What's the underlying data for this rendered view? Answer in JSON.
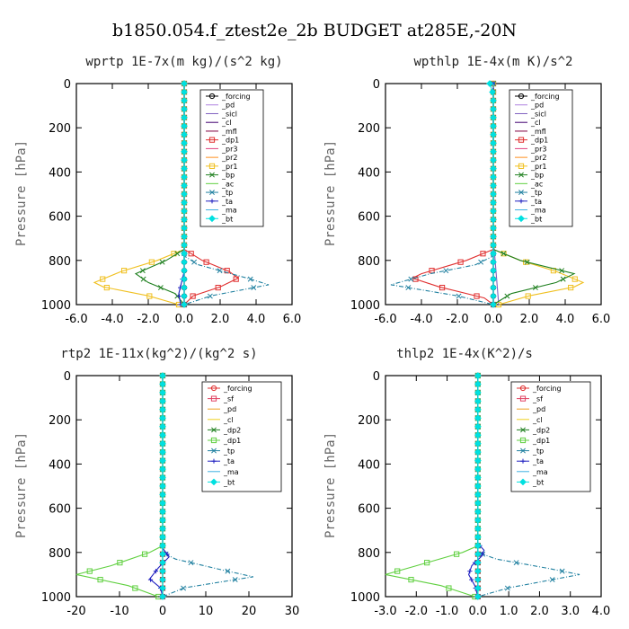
{
  "title": "b1850.054.f_ztest2e_2b  BUDGET at285E,-20N",
  "chart_data": [
    {
      "type": "line",
      "title": "wprtp  1E-7x(m kg)/(s^2 kg)",
      "ylabel": "Pressure [hPa]",
      "xlim": [
        -6,
        6
      ],
      "ylim": [
        1000,
        0
      ],
      "xticks": [
        "-6.0",
        "-4.0",
        "-2.0",
        "0.0",
        "2.0",
        "4.0",
        "6.0"
      ],
      "yticks": [
        "0",
        "200",
        "400",
        "600",
        "800",
        "1000"
      ],
      "series": [
        {
          "name": "_forcing",
          "color": "#000000",
          "marker": "circle",
          "p": [
            0,
            400,
            750,
            1000
          ],
          "v": [
            0,
            0,
            0,
            0
          ]
        },
        {
          "name": "_pd",
          "color": "#b080e0",
          "marker": "none",
          "p": [
            0,
            750,
            1000
          ],
          "v": [
            0,
            0,
            0
          ]
        },
        {
          "name": "_sicl",
          "color": "#8060c0",
          "marker": "none",
          "p": [
            0,
            1000
          ],
          "v": [
            0,
            0
          ]
        },
        {
          "name": "_cl",
          "color": "#400070",
          "marker": "none",
          "p": [
            0,
            1000
          ],
          "v": [
            0,
            0
          ]
        },
        {
          "name": "_mfl",
          "color": "#800040",
          "marker": "none",
          "p": [
            0,
            1000
          ],
          "v": [
            0,
            0
          ]
        },
        {
          "name": "_dp1",
          "color": "#e03030",
          "marker": "square",
          "p": [
            0,
            750,
            800,
            850,
            880,
            920,
            960,
            1000
          ],
          "v": [
            0,
            0,
            1.0,
            2.5,
            3.0,
            2.0,
            0.5,
            0
          ]
        },
        {
          "name": "_pr3",
          "color": "#e04080",
          "marker": "none",
          "p": [
            0,
            1000
          ],
          "v": [
            0,
            0
          ]
        },
        {
          "name": "_pr2",
          "color": "#ff9020",
          "marker": "none",
          "p": [
            0,
            1000
          ],
          "v": [
            0,
            0
          ]
        },
        {
          "name": "_pr1",
          "color": "#f0c020",
          "marker": "square",
          "p": [
            0,
            750,
            800,
            850,
            900,
            920,
            960,
            1000
          ],
          "v": [
            0,
            0,
            -1.5,
            -3.5,
            -5.0,
            -4.5,
            -2.0,
            -0.3
          ]
        },
        {
          "name": "_bp",
          "color": "#208020",
          "marker": "x",
          "p": [
            0,
            750,
            800,
            860,
            900,
            950,
            1000
          ],
          "v": [
            0,
            0,
            -1.0,
            -2.7,
            -2.0,
            -0.5,
            0
          ]
        },
        {
          "name": "_ac",
          "color": "#60d040",
          "marker": "none",
          "p": [
            0,
            1000
          ],
          "v": [
            0,
            0
          ]
        },
        {
          "name": "_tp",
          "color": "#2080a0",
          "marker": "x",
          "p": [
            0,
            780,
            820,
            880,
            910,
            960,
            1000
          ],
          "v": [
            0,
            0,
            0.8,
            3.5,
            4.7,
            1.5,
            0
          ]
        },
        {
          "name": "_ta",
          "color": "#2020c0",
          "marker": "plus",
          "p": [
            0,
            850,
            950,
            1000
          ],
          "v": [
            0,
            0,
            -0.3,
            -0.2
          ]
        },
        {
          "name": "_ma",
          "color": "#40b0e0",
          "marker": "none",
          "p": [
            0,
            1000
          ],
          "v": [
            0,
            0
          ]
        },
        {
          "name": "_bt",
          "color": "#00e0e0",
          "marker": "diamond",
          "p": [
            0,
            1000
          ],
          "v": [
            0,
            0
          ]
        }
      ]
    },
    {
      "type": "line",
      "title": "wpthlp  1E-4x(m K)/s^2",
      "ylabel": "Pressure [hPa]",
      "xlim": [
        -6,
        6
      ],
      "ylim": [
        1000,
        0
      ],
      "xticks": [
        "-6.0",
        "-4.0",
        "-2.0",
        "0.0",
        "2.0",
        "4.0",
        "6.0"
      ],
      "yticks": [
        "0",
        "200",
        "400",
        "600",
        "800",
        "1000"
      ],
      "series": [
        {
          "name": "_forcing",
          "color": "#000000",
          "marker": "circle",
          "p": [
            0,
            1000
          ],
          "v": [
            0,
            0
          ]
        },
        {
          "name": "_pd",
          "color": "#b080e0",
          "marker": "none",
          "p": [
            0,
            1000
          ],
          "v": [
            0,
            0
          ]
        },
        {
          "name": "_sicl",
          "color": "#8060c0",
          "marker": "none",
          "p": [
            0,
            700,
            900,
            1000
          ],
          "v": [
            0,
            0,
            0.2,
            0.3
          ]
        },
        {
          "name": "_cl",
          "color": "#400070",
          "marker": "none",
          "p": [
            0,
            1000
          ],
          "v": [
            0,
            0
          ]
        },
        {
          "name": "_mfl",
          "color": "#800040",
          "marker": "none",
          "p": [
            0,
            1000
          ],
          "v": [
            0,
            0
          ]
        },
        {
          "name": "_dp1",
          "color": "#e03030",
          "marker": "square",
          "p": [
            0,
            750,
            800,
            860,
            880,
            920,
            970,
            1000
          ],
          "v": [
            0,
            0,
            -1.5,
            -4.0,
            -4.5,
            -3.0,
            -0.5,
            0
          ]
        },
        {
          "name": "_pr3",
          "color": "#e04080",
          "marker": "none",
          "p": [
            0,
            1000
          ],
          "v": [
            0,
            0
          ]
        },
        {
          "name": "_pr2",
          "color": "#ff9020",
          "marker": "none",
          "p": [
            0,
            1000
          ],
          "v": [
            0,
            0
          ]
        },
        {
          "name": "_pr1",
          "color": "#f0c020",
          "marker": "square",
          "p": [
            0,
            750,
            800,
            850,
            900,
            920,
            960,
            1000
          ],
          "v": [
            0,
            0,
            1.5,
            3.5,
            5.0,
            4.5,
            2.0,
            0.3
          ]
        },
        {
          "name": "_bp",
          "color": "#208020",
          "marker": "x",
          "p": [
            0,
            750,
            800,
            860,
            900,
            950,
            1000
          ],
          "v": [
            0,
            0,
            1.5,
            4.5,
            3.5,
            1.0,
            0
          ]
        },
        {
          "name": "_ac",
          "color": "#60d040",
          "marker": "none",
          "p": [
            0,
            1000
          ],
          "v": [
            0,
            0
          ]
        },
        {
          "name": "_tp",
          "color": "#2080a0",
          "marker": "x",
          "p": [
            0,
            780,
            820,
            860,
            910,
            960,
            1000
          ],
          "v": [
            0,
            0,
            -1.0,
            -3.5,
            -5.7,
            -2.0,
            0
          ]
        },
        {
          "name": "_ta",
          "color": "#2020c0",
          "marker": "plus",
          "p": [
            0,
            1000
          ],
          "v": [
            0,
            0
          ]
        },
        {
          "name": "_ma",
          "color": "#40b0e0",
          "marker": "none",
          "p": [
            0,
            1000
          ],
          "v": [
            0,
            0
          ]
        },
        {
          "name": "_bt",
          "color": "#00e0e0",
          "marker": "diamond",
          "p": [
            0,
            50,
            1000
          ],
          "v": [
            -0.2,
            0,
            0
          ]
        }
      ]
    },
    {
      "type": "line",
      "title": "rtp2  1E-11x(kg^2)/(kg^2 s)",
      "ylabel": "Pressure [hPa]",
      "xlim": [
        -20,
        30
      ],
      "ylim": [
        1000,
        0
      ],
      "xticks": [
        "-20",
        "-10",
        "0",
        "10",
        "20",
        "30"
      ],
      "yticks": [
        "0",
        "200",
        "400",
        "600",
        "800",
        "1000"
      ],
      "series": [
        {
          "name": "_forcing",
          "color": "#e03030",
          "marker": "circle",
          "p": [
            0,
            1000
          ],
          "v": [
            0,
            0
          ]
        },
        {
          "name": "_sf",
          "color": "#e04060",
          "marker": "square",
          "p": [
            0,
            1000
          ],
          "v": [
            0,
            0
          ]
        },
        {
          "name": "_pd",
          "color": "#f0a020",
          "marker": "none",
          "p": [
            0,
            1000
          ],
          "v": [
            0,
            0
          ]
        },
        {
          "name": "_cl",
          "color": "#f0d020",
          "marker": "none",
          "p": [
            0,
            1000
          ],
          "v": [
            0,
            0
          ]
        },
        {
          "name": "_dp2",
          "color": "#208020",
          "marker": "x",
          "p": [
            0,
            1000
          ],
          "v": [
            0,
            0
          ]
        },
        {
          "name": "_dp1",
          "color": "#60d040",
          "marker": "square",
          "p": [
            0,
            770,
            800,
            860,
            900,
            950,
            1000
          ],
          "v": [
            0,
            0,
            -3,
            -12,
            -20,
            -8,
            -1
          ]
        },
        {
          "name": "_tp",
          "color": "#2080a0",
          "marker": "x",
          "p": [
            0,
            800,
            830,
            880,
            910,
            960,
            1000
          ],
          "v": [
            0,
            0,
            3,
            14,
            21,
            5,
            0
          ]
        },
        {
          "name": "_ta",
          "color": "#2020c0",
          "marker": "plus",
          "p": [
            0,
            780,
            820,
            870,
            920,
            960,
            1000
          ],
          "v": [
            0,
            0,
            1.5,
            -1,
            -3,
            -0.5,
            0
          ]
        },
        {
          "name": "_ma",
          "color": "#40b0e0",
          "marker": "none",
          "p": [
            0,
            1000
          ],
          "v": [
            0,
            0
          ]
        },
        {
          "name": "_bt",
          "color": "#00e0e0",
          "marker": "diamond",
          "p": [
            0,
            1000
          ],
          "v": [
            0,
            0
          ]
        }
      ]
    },
    {
      "type": "line",
      "title": "thlp2  1E-4x(K^2)/s",
      "ylabel": "Pressure [hPa]",
      "xlim": [
        -3,
        4
      ],
      "ylim": [
        1000,
        0
      ],
      "xticks": [
        "-3.0",
        "-2.0",
        "-1.0",
        "0.0",
        "1.0",
        "2.0",
        "3.0",
        "4.0"
      ],
      "yticks": [
        "0",
        "200",
        "400",
        "600",
        "800",
        "1000"
      ],
      "series": [
        {
          "name": "_forcing",
          "color": "#e03030",
          "marker": "circle",
          "p": [
            0,
            1000
          ],
          "v": [
            0,
            0
          ]
        },
        {
          "name": "_sf",
          "color": "#e04060",
          "marker": "square",
          "p": [
            0,
            1000
          ],
          "v": [
            0,
            0
          ]
        },
        {
          "name": "_pd",
          "color": "#f0a020",
          "marker": "none",
          "p": [
            0,
            1000
          ],
          "v": [
            0,
            0
          ]
        },
        {
          "name": "_cl",
          "color": "#f0d020",
          "marker": "none",
          "p": [
            0,
            1000
          ],
          "v": [
            0,
            0
          ]
        },
        {
          "name": "_dp2",
          "color": "#208020",
          "marker": "x",
          "p": [
            0,
            1000
          ],
          "v": [
            0,
            0
          ]
        },
        {
          "name": "_dp1",
          "color": "#60d040",
          "marker": "square",
          "p": [
            0,
            770,
            800,
            860,
            900,
            950,
            1000
          ],
          "v": [
            0,
            0,
            -0.5,
            -2.0,
            -3.0,
            -1.2,
            -0.1
          ]
        },
        {
          "name": "_tp",
          "color": "#2080a0",
          "marker": "x",
          "p": [
            0,
            800,
            830,
            870,
            900,
            960,
            1000
          ],
          "v": [
            0,
            0,
            0.6,
            2.2,
            3.3,
            1.0,
            0
          ]
        },
        {
          "name": "_ta",
          "color": "#2020c0",
          "marker": "plus",
          "p": [
            0,
            760,
            790,
            820,
            860,
            900,
            950,
            1000
          ],
          "v": [
            0,
            0,
            0.2,
            0.1,
            -0.2,
            -0.3,
            -0.1,
            0
          ]
        },
        {
          "name": "_ma",
          "color": "#40b0e0",
          "marker": "none",
          "p": [
            0,
            1000
          ],
          "v": [
            0,
            0
          ]
        },
        {
          "name": "_bt",
          "color": "#00e0e0",
          "marker": "diamond",
          "p": [
            0,
            1000
          ],
          "v": [
            0,
            0
          ]
        }
      ]
    }
  ]
}
